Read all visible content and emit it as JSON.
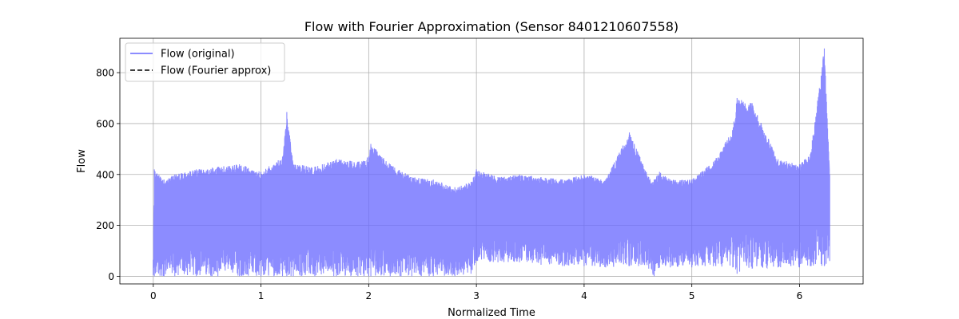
{
  "chart_data": {
    "type": "line",
    "title": "Flow with Fourier Approximation (Sensor 8401210607558)",
    "xlabel": "Normalized Time",
    "ylabel": "Flow",
    "xlim": [
      -0.31,
      6.59
    ],
    "ylim": [
      -30,
      935
    ],
    "xticks": [
      "0",
      "1",
      "2",
      "3",
      "4",
      "5",
      "6"
    ],
    "yticks": [
      "0",
      "200",
      "400",
      "600",
      "800"
    ],
    "grid": true,
    "legend_position": "top-left",
    "series": [
      {
        "name": "Flow (original)",
        "color": "#6666ff",
        "style": "solid",
        "envelope": {
          "x": [
            0.0,
            0.01,
            0.1,
            0.2,
            0.4,
            0.6,
            0.8,
            1.0,
            1.2,
            1.24,
            1.3,
            1.5,
            1.7,
            1.9,
            2.0,
            2.02,
            2.2,
            2.4,
            2.6,
            2.8,
            2.95,
            3.0,
            3.2,
            3.4,
            3.6,
            3.8,
            4.0,
            4.2,
            4.42,
            4.6,
            4.65,
            4.7,
            4.8,
            5.0,
            5.2,
            5.38,
            5.42,
            5.56,
            5.8,
            6.0,
            6.1,
            6.23,
            6.28
          ],
          "max": [
            65,
            420,
            380,
            400,
            420,
            430,
            440,
            410,
            470,
            645,
            440,
            430,
            460,
            450,
            470,
            520,
            440,
            390,
            380,
            350,
            370,
            420,
            390,
            400,
            390,
            380,
            400,
            380,
            565,
            390,
            380,
            410,
            380,
            380,
            450,
            575,
            700,
            680,
            460,
            440,
            480,
            895,
            400
          ],
          "min": [
            5,
            0,
            0,
            0,
            0,
            0,
            0,
            0,
            0,
            0,
            0,
            0,
            0,
            0,
            0,
            0,
            0,
            0,
            0,
            0,
            10,
            60,
            55,
            55,
            45,
            40,
            40,
            35,
            40,
            30,
            0,
            35,
            35,
            35,
            40,
            35,
            10,
            30,
            35,
            35,
            40,
            40,
            60
          ]
        }
      },
      {
        "name": "Flow (Fourier approx)",
        "color": "#000000",
        "style": "dashed",
        "x": [],
        "y": []
      }
    ]
  }
}
